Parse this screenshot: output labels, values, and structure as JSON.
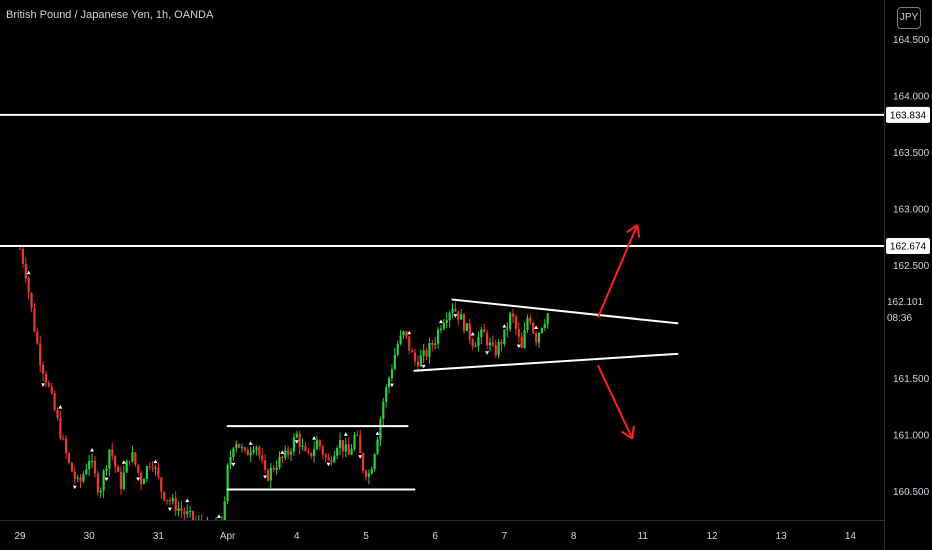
{
  "header": {
    "title": "British Pound / Japanese Yen, 1h, OANDA",
    "currency": "JPY"
  },
  "last_price": {
    "value": "162.101",
    "countdown": "08:36"
  },
  "colors": {
    "up": "#26a69a",
    "down": "#ef5350",
    "up_bright": "#2ecc40",
    "down_bright": "#e8382f",
    "level": "#ffffff",
    "arrow": "#ff2020",
    "background": "#000000"
  },
  "chart_data": {
    "type": "candlestick",
    "instrument": "British Pound / Japanese Yen",
    "timeframe": "1h",
    "source": "OANDA",
    "ylim": [
      160.25,
      164.85
    ],
    "y_ticks": [
      "164.500",
      "164.000",
      "163.500",
      "163.000",
      "162.500",
      "161.500",
      "161.000",
      "160.500"
    ],
    "x_ticks": [
      {
        "label": "29",
        "day": 0
      },
      {
        "label": "30",
        "day": 1
      },
      {
        "label": "31",
        "day": 2
      },
      {
        "label": "Apr",
        "day": 3
      },
      {
        "label": "4",
        "day": 4
      },
      {
        "label": "5",
        "day": 5
      },
      {
        "label": "6",
        "day": 6
      },
      {
        "label": "7",
        "day": 7
      },
      {
        "label": "8",
        "day": 8
      },
      {
        "label": "11",
        "day": 9
      },
      {
        "label": "12",
        "day": 10
      },
      {
        "label": "13",
        "day": 11
      },
      {
        "label": "14",
        "day": 12
      }
    ],
    "levels": [
      {
        "price": 163.834,
        "label": "163.834"
      },
      {
        "price": 162.674,
        "label": "162.674"
      }
    ],
    "segments": [
      {
        "name": "consolidation-top",
        "from": [
          3.0,
          161.08
        ],
        "to": [
          5.6,
          161.08
        ]
      },
      {
        "name": "consolidation-bottom",
        "from": [
          3.0,
          160.52
        ],
        "to": [
          5.7,
          160.52
        ]
      },
      {
        "name": "triangle-upper",
        "from": [
          6.25,
          162.2
        ],
        "to": [
          9.5,
          161.99
        ]
      },
      {
        "name": "triangle-lower",
        "from": [
          5.7,
          161.57
        ],
        "to": [
          9.5,
          161.72
        ]
      }
    ],
    "arrows": [
      {
        "name": "breakout-up-arrow",
        "from": [
          8.35,
          162.04
        ],
        "to": [
          8.92,
          162.86
        ]
      },
      {
        "name": "breakdown-down-arrow",
        "from": [
          8.35,
          161.62
        ],
        "to": [
          8.85,
          160.97
        ]
      }
    ],
    "price_path": [
      [
        0.0,
        162.65
      ],
      [
        0.08,
        162.45
      ],
      [
        0.18,
        162.05
      ],
      [
        0.28,
        161.7
      ],
      [
        0.4,
        161.45
      ],
      [
        0.55,
        161.1
      ],
      [
        0.7,
        160.75
      ],
      [
        0.85,
        160.55
      ],
      [
        1.0,
        160.8
      ],
      [
        1.15,
        160.5
      ],
      [
        1.3,
        160.9
      ],
      [
        1.45,
        160.55
      ],
      [
        1.6,
        160.85
      ],
      [
        1.75,
        160.6
      ],
      [
        1.9,
        160.8
      ],
      [
        2.05,
        160.5
      ],
      [
        2.2,
        160.4
      ],
      [
        2.4,
        160.3
      ],
      [
        2.6,
        160.2
      ],
      [
        2.8,
        160.15
      ],
      [
        2.95,
        160.3
      ],
      [
        3.0,
        160.7
      ],
      [
        3.1,
        160.98
      ],
      [
        3.25,
        160.82
      ],
      [
        3.4,
        160.95
      ],
      [
        3.55,
        160.62
      ],
      [
        3.7,
        160.75
      ],
      [
        3.85,
        160.82
      ],
      [
        4.0,
        161.0
      ],
      [
        4.15,
        160.78
      ],
      [
        4.3,
        160.95
      ],
      [
        4.45,
        160.75
      ],
      [
        4.6,
        160.96
      ],
      [
        4.75,
        160.82
      ],
      [
        4.85,
        161.02
      ],
      [
        4.95,
        160.72
      ],
      [
        5.05,
        160.65
      ],
      [
        5.15,
        160.95
      ],
      [
        5.25,
        161.3
      ],
      [
        5.35,
        161.55
      ],
      [
        5.45,
        161.8
      ],
      [
        5.55,
        161.9
      ],
      [
        5.7,
        161.65
      ],
      [
        5.85,
        161.7
      ],
      [
        6.0,
        161.85
      ],
      [
        6.1,
        162.02
      ],
      [
        6.25,
        162.15
      ],
      [
        6.4,
        162.0
      ],
      [
        6.55,
        161.82
      ],
      [
        6.7,
        161.9
      ],
      [
        6.85,
        161.72
      ],
      [
        7.0,
        161.88
      ],
      [
        7.1,
        162.08
      ],
      [
        7.25,
        161.75
      ],
      [
        7.35,
        162.1
      ],
      [
        7.45,
        161.85
      ],
      [
        7.55,
        162.0
      ],
      [
        7.65,
        162.1
      ]
    ]
  }
}
